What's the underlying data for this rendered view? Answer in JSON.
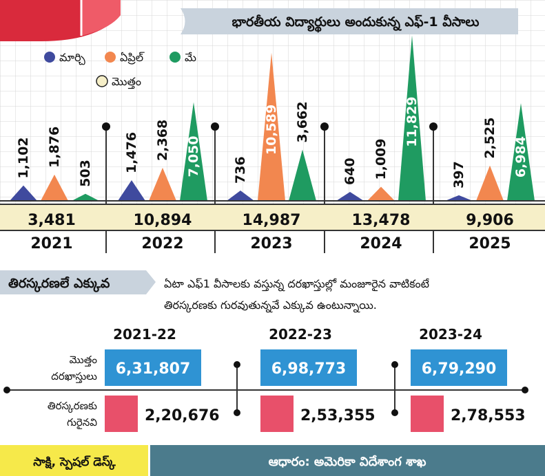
{
  "title": "భారతీయ విద్యార్థులు అందుకున్న ఎఫ్-1 వీసాలు",
  "colors": {
    "march": "#3f4a9e",
    "april": "#f2874f",
    "may": "#1f9b61",
    "total_box": "#f6efc8",
    "applications_box": "#2f93d3",
    "rejections_box": "#e8506a",
    "footer_left": "#f6e94a",
    "footer_right": "#4b7b8c",
    "title_bar": "#c9d3dd"
  },
  "chart_data": [
    {
      "type": "bar",
      "bar_shape": "triangle",
      "title": "భారతీయ విద్యార్థులు అందుకున్న ఎఫ్-1 వీసాలు",
      "categories": [
        "2021",
        "2022",
        "2023",
        "2024",
        "2025"
      ],
      "series": [
        {
          "name": "మార్చి",
          "values": [
            1102,
            1476,
            736,
            640,
            397
          ]
        },
        {
          "name": "ఏప్రిల్",
          "values": [
            1876,
            2368,
            10589,
            1009,
            2525
          ]
        },
        {
          "name": "మే",
          "values": [
            503,
            7050,
            3662,
            11829,
            6984
          ]
        }
      ],
      "value_labels": [
        [
          "1,102",
          "1,876",
          "503"
        ],
        [
          "1,476",
          "2,368",
          "7,050"
        ],
        [
          "736",
          "10,589",
          "3,662"
        ],
        [
          "640",
          "1,009",
          "11,829"
        ],
        [
          "397",
          "2,525",
          "6,984"
        ]
      ],
      "totals_legend": "మొత్తం",
      "totals": [
        3481,
        10894,
        14987,
        13478,
        9906
      ],
      "totals_labels": [
        "3,481",
        "10,894",
        "14,987",
        "13,478",
        "9,906"
      ],
      "legend_position": "top-left",
      "grid": true
    },
    {
      "type": "table",
      "title": "తిరస్కరణలే ఎక్కువ",
      "note_line1": "ఏటా ఎఫ్1 వీసాలకు వస్తున్న దరఖాస్తుల్లో మంజూరైన వాటికంటే",
      "note_line2": "తిరస్కరణకు గురవుతున్నవే ఎక్కువ ఉంటున్నాయి.",
      "periods": [
        "2021-22",
        "2022-23",
        "2023-24"
      ],
      "row_labels": {
        "applications": [
          "మొత్తం",
          "దరఖాస్తులు"
        ],
        "rejections": [
          "తిరస్కరణకు",
          "గురైనవి"
        ]
      },
      "applications": [
        631807,
        698773,
        679290
      ],
      "applications_labels": [
        "6,31,807",
        "6,98,773",
        "6,79,290"
      ],
      "rejections": [
        220676,
        253355,
        278553
      ],
      "rejections_labels": [
        "2,20,676",
        "2,53,355",
        "2,78,553"
      ]
    }
  ],
  "footer": {
    "left": "సాక్షి, స్పెషల్‌ డెస్క్‌",
    "right": "ఆధారం: అమెరికా విదేశాంగ శాఖ"
  }
}
